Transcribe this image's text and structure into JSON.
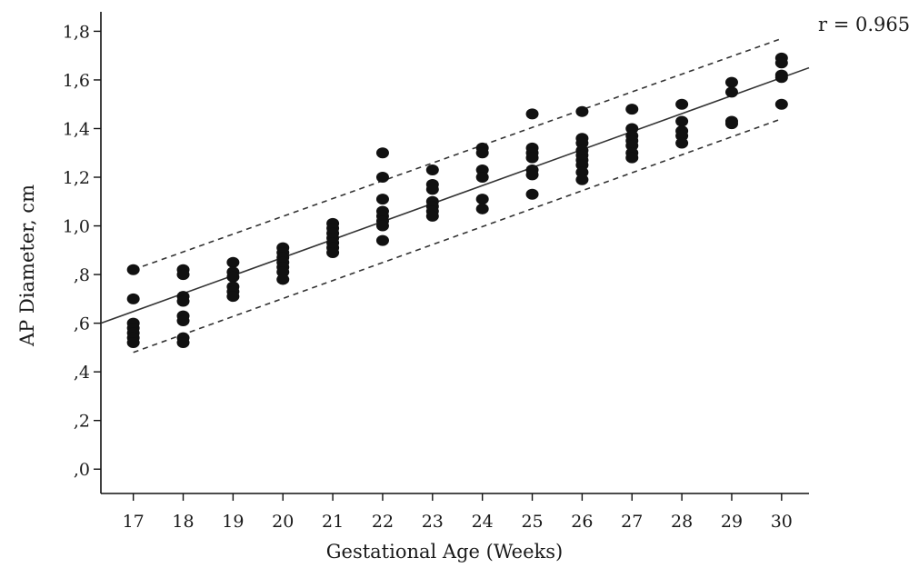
{
  "chart_data": {
    "type": "scatter",
    "title": "",
    "xlabel": "Gestational Age (Weeks)",
    "ylabel": "AP Diameter, cm",
    "annotation": "r = 0.965",
    "xlim": [
      16.35,
      30.55
    ],
    "ylim": [
      -0.1,
      1.88
    ],
    "x_ticks": [
      17,
      18,
      19,
      20,
      21,
      22,
      23,
      24,
      25,
      26,
      27,
      28,
      29,
      30
    ],
    "y_ticks": [
      0.0,
      0.2,
      0.4,
      0.6,
      0.8,
      1.0,
      1.2,
      1.4,
      1.6,
      1.8
    ],
    "y_tick_labels": [
      ",0",
      ",2",
      ",4",
      ",6",
      ",8",
      "1,0",
      "1,2",
      "1,4",
      "1,6",
      "1,8"
    ],
    "grid": false,
    "points": [
      {
        "x": 17,
        "y": 0.82
      },
      {
        "x": 17,
        "y": 0.7
      },
      {
        "x": 17,
        "y": 0.6
      },
      {
        "x": 17,
        "y": 0.58
      },
      {
        "x": 17,
        "y": 0.56
      },
      {
        "x": 17,
        "y": 0.54
      },
      {
        "x": 17,
        "y": 0.52
      },
      {
        "x": 18,
        "y": 0.82
      },
      {
        "x": 18,
        "y": 0.8
      },
      {
        "x": 18,
        "y": 0.71
      },
      {
        "x": 18,
        "y": 0.69
      },
      {
        "x": 18,
        "y": 0.63
      },
      {
        "x": 18,
        "y": 0.61
      },
      {
        "x": 18,
        "y": 0.54
      },
      {
        "x": 18,
        "y": 0.52
      },
      {
        "x": 19,
        "y": 0.85
      },
      {
        "x": 19,
        "y": 0.81
      },
      {
        "x": 19,
        "y": 0.79
      },
      {
        "x": 19,
        "y": 0.75
      },
      {
        "x": 19,
        "y": 0.73
      },
      {
        "x": 19,
        "y": 0.71
      },
      {
        "x": 20,
        "y": 0.91
      },
      {
        "x": 20,
        "y": 0.89
      },
      {
        "x": 20,
        "y": 0.87
      },
      {
        "x": 20,
        "y": 0.85
      },
      {
        "x": 20,
        "y": 0.83
      },
      {
        "x": 20,
        "y": 0.81
      },
      {
        "x": 20,
        "y": 0.78
      },
      {
        "x": 21,
        "y": 1.01
      },
      {
        "x": 21,
        "y": 0.99
      },
      {
        "x": 21,
        "y": 0.97
      },
      {
        "x": 21,
        "y": 0.95
      },
      {
        "x": 21,
        "y": 0.93
      },
      {
        "x": 21,
        "y": 0.91
      },
      {
        "x": 21,
        "y": 0.89
      },
      {
        "x": 22,
        "y": 1.3
      },
      {
        "x": 22,
        "y": 1.2
      },
      {
        "x": 22,
        "y": 1.11
      },
      {
        "x": 22,
        "y": 1.06
      },
      {
        "x": 22,
        "y": 1.04
      },
      {
        "x": 22,
        "y": 1.02
      },
      {
        "x": 22,
        "y": 1.0
      },
      {
        "x": 22,
        "y": 0.94
      },
      {
        "x": 23,
        "y": 1.23
      },
      {
        "x": 23,
        "y": 1.17
      },
      {
        "x": 23,
        "y": 1.15
      },
      {
        "x": 23,
        "y": 1.1
      },
      {
        "x": 23,
        "y": 1.08
      },
      {
        "x": 23,
        "y": 1.06
      },
      {
        "x": 23,
        "y": 1.04
      },
      {
        "x": 24,
        "y": 1.32
      },
      {
        "x": 24,
        "y": 1.3
      },
      {
        "x": 24,
        "y": 1.23
      },
      {
        "x": 24,
        "y": 1.2
      },
      {
        "x": 24,
        "y": 1.11
      },
      {
        "x": 24,
        "y": 1.07
      },
      {
        "x": 25,
        "y": 1.46
      },
      {
        "x": 25,
        "y": 1.32
      },
      {
        "x": 25,
        "y": 1.3
      },
      {
        "x": 25,
        "y": 1.28
      },
      {
        "x": 25,
        "y": 1.23
      },
      {
        "x": 25,
        "y": 1.21
      },
      {
        "x": 25,
        "y": 1.13
      },
      {
        "x": 26,
        "y": 1.47
      },
      {
        "x": 26,
        "y": 1.36
      },
      {
        "x": 26,
        "y": 1.34
      },
      {
        "x": 26,
        "y": 1.31
      },
      {
        "x": 26,
        "y": 1.29
      },
      {
        "x": 26,
        "y": 1.27
      },
      {
        "x": 26,
        "y": 1.25
      },
      {
        "x": 26,
        "y": 1.22
      },
      {
        "x": 26,
        "y": 1.19
      },
      {
        "x": 27,
        "y": 1.48
      },
      {
        "x": 27,
        "y": 1.4
      },
      {
        "x": 27,
        "y": 1.37
      },
      {
        "x": 27,
        "y": 1.35
      },
      {
        "x": 27,
        "y": 1.33
      },
      {
        "x": 27,
        "y": 1.3
      },
      {
        "x": 27,
        "y": 1.28
      },
      {
        "x": 28,
        "y": 1.5
      },
      {
        "x": 28,
        "y": 1.43
      },
      {
        "x": 28,
        "y": 1.39
      },
      {
        "x": 28,
        "y": 1.37
      },
      {
        "x": 28,
        "y": 1.34
      },
      {
        "x": 29,
        "y": 1.59
      },
      {
        "x": 29,
        "y": 1.55
      },
      {
        "x": 29,
        "y": 1.43
      },
      {
        "x": 29,
        "y": 1.42
      },
      {
        "x": 30,
        "y": 1.69
      },
      {
        "x": 30,
        "y": 1.67
      },
      {
        "x": 30,
        "y": 1.62
      },
      {
        "x": 30,
        "y": 1.61
      },
      {
        "x": 30,
        "y": 1.5
      }
    ],
    "regression_line": {
      "x": [
        16.35,
        30.55
      ],
      "y": [
        0.6,
        1.65
      ]
    },
    "confidence_bands": [
      {
        "x": [
          17,
          30
        ],
        "y": [
          0.82,
          1.77
        ]
      },
      {
        "x": [
          17,
          30
        ],
        "y": [
          0.48,
          1.44
        ]
      }
    ],
    "colors": {
      "points": "#111111",
      "line": "#333333",
      "axis": "#111111"
    }
  }
}
